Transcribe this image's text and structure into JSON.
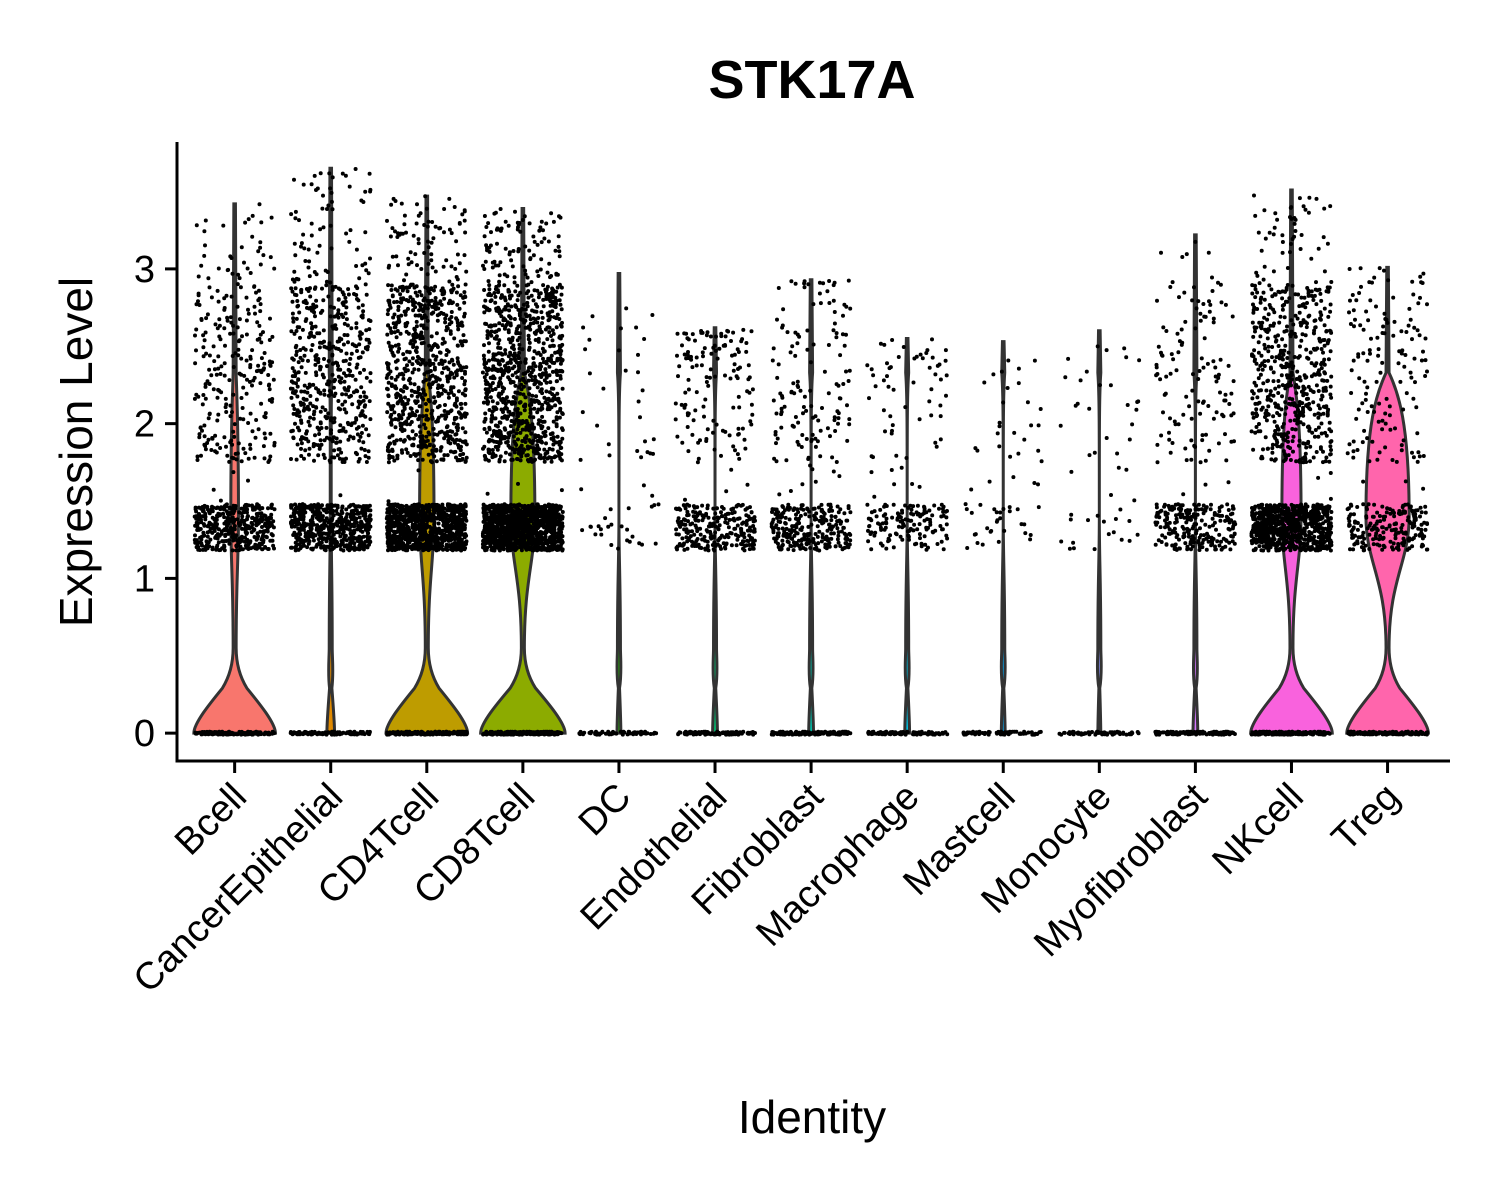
{
  "chart_data": {
    "type": "violin",
    "title": "STK17A",
    "xlabel": "Identity",
    "ylabel": "Expression Level",
    "ylim": [
      -0.18,
      3.82
    ],
    "yticks": [
      0,
      1,
      2,
      3
    ],
    "grid": false,
    "legend": "none",
    "categories": [
      "Bcell",
      "CancerEpithelial",
      "CD4Tcell",
      "CD8Tcell",
      "DC",
      "Endothelial",
      "Fibroblast",
      "Macrophage",
      "Mastcell",
      "Monocyte",
      "Myofibroblast",
      "NKcell",
      "Treg"
    ],
    "colors": [
      "#F8766D",
      "#E18A00",
      "#BE9C00",
      "#8CAB00",
      "#24B700",
      "#00BE70",
      "#00C1AB",
      "#00BBDA",
      "#00ACFC",
      "#8B93FF",
      "#D575FE",
      "#F962DD",
      "#FF65AC"
    ],
    "max_values": [
      3.42,
      3.65,
      3.47,
      3.39,
      2.97,
      2.62,
      2.93,
      2.55,
      2.53,
      2.6,
      3.22,
      3.51,
      3.01
    ],
    "violin_width_at_zero": [
      0.85,
      0.08,
      0.85,
      0.88,
      0.04,
      0.05,
      0.05,
      0.05,
      0.04,
      0.03,
      0.05,
      0.85,
      0.85
    ],
    "violin_width_at_mode": [
      0.08,
      0.01,
      0.15,
      0.25,
      0.0,
      0.0,
      0.0,
      0.0,
      0.0,
      0.0,
      0.0,
      0.2,
      0.45
    ],
    "nonzero_fraction": [
      0.35,
      0.9,
      0.6,
      0.75,
      0.05,
      0.2,
      0.2,
      0.1,
      0.03,
      0.02,
      0.2,
      0.55,
      0.3
    ],
    "point_density": [
      0.55,
      0.45,
      1.0,
      1.0,
      0.05,
      0.45,
      0.45,
      0.3,
      0.06,
      0.03,
      0.4,
      0.8,
      0.3
    ]
  }
}
